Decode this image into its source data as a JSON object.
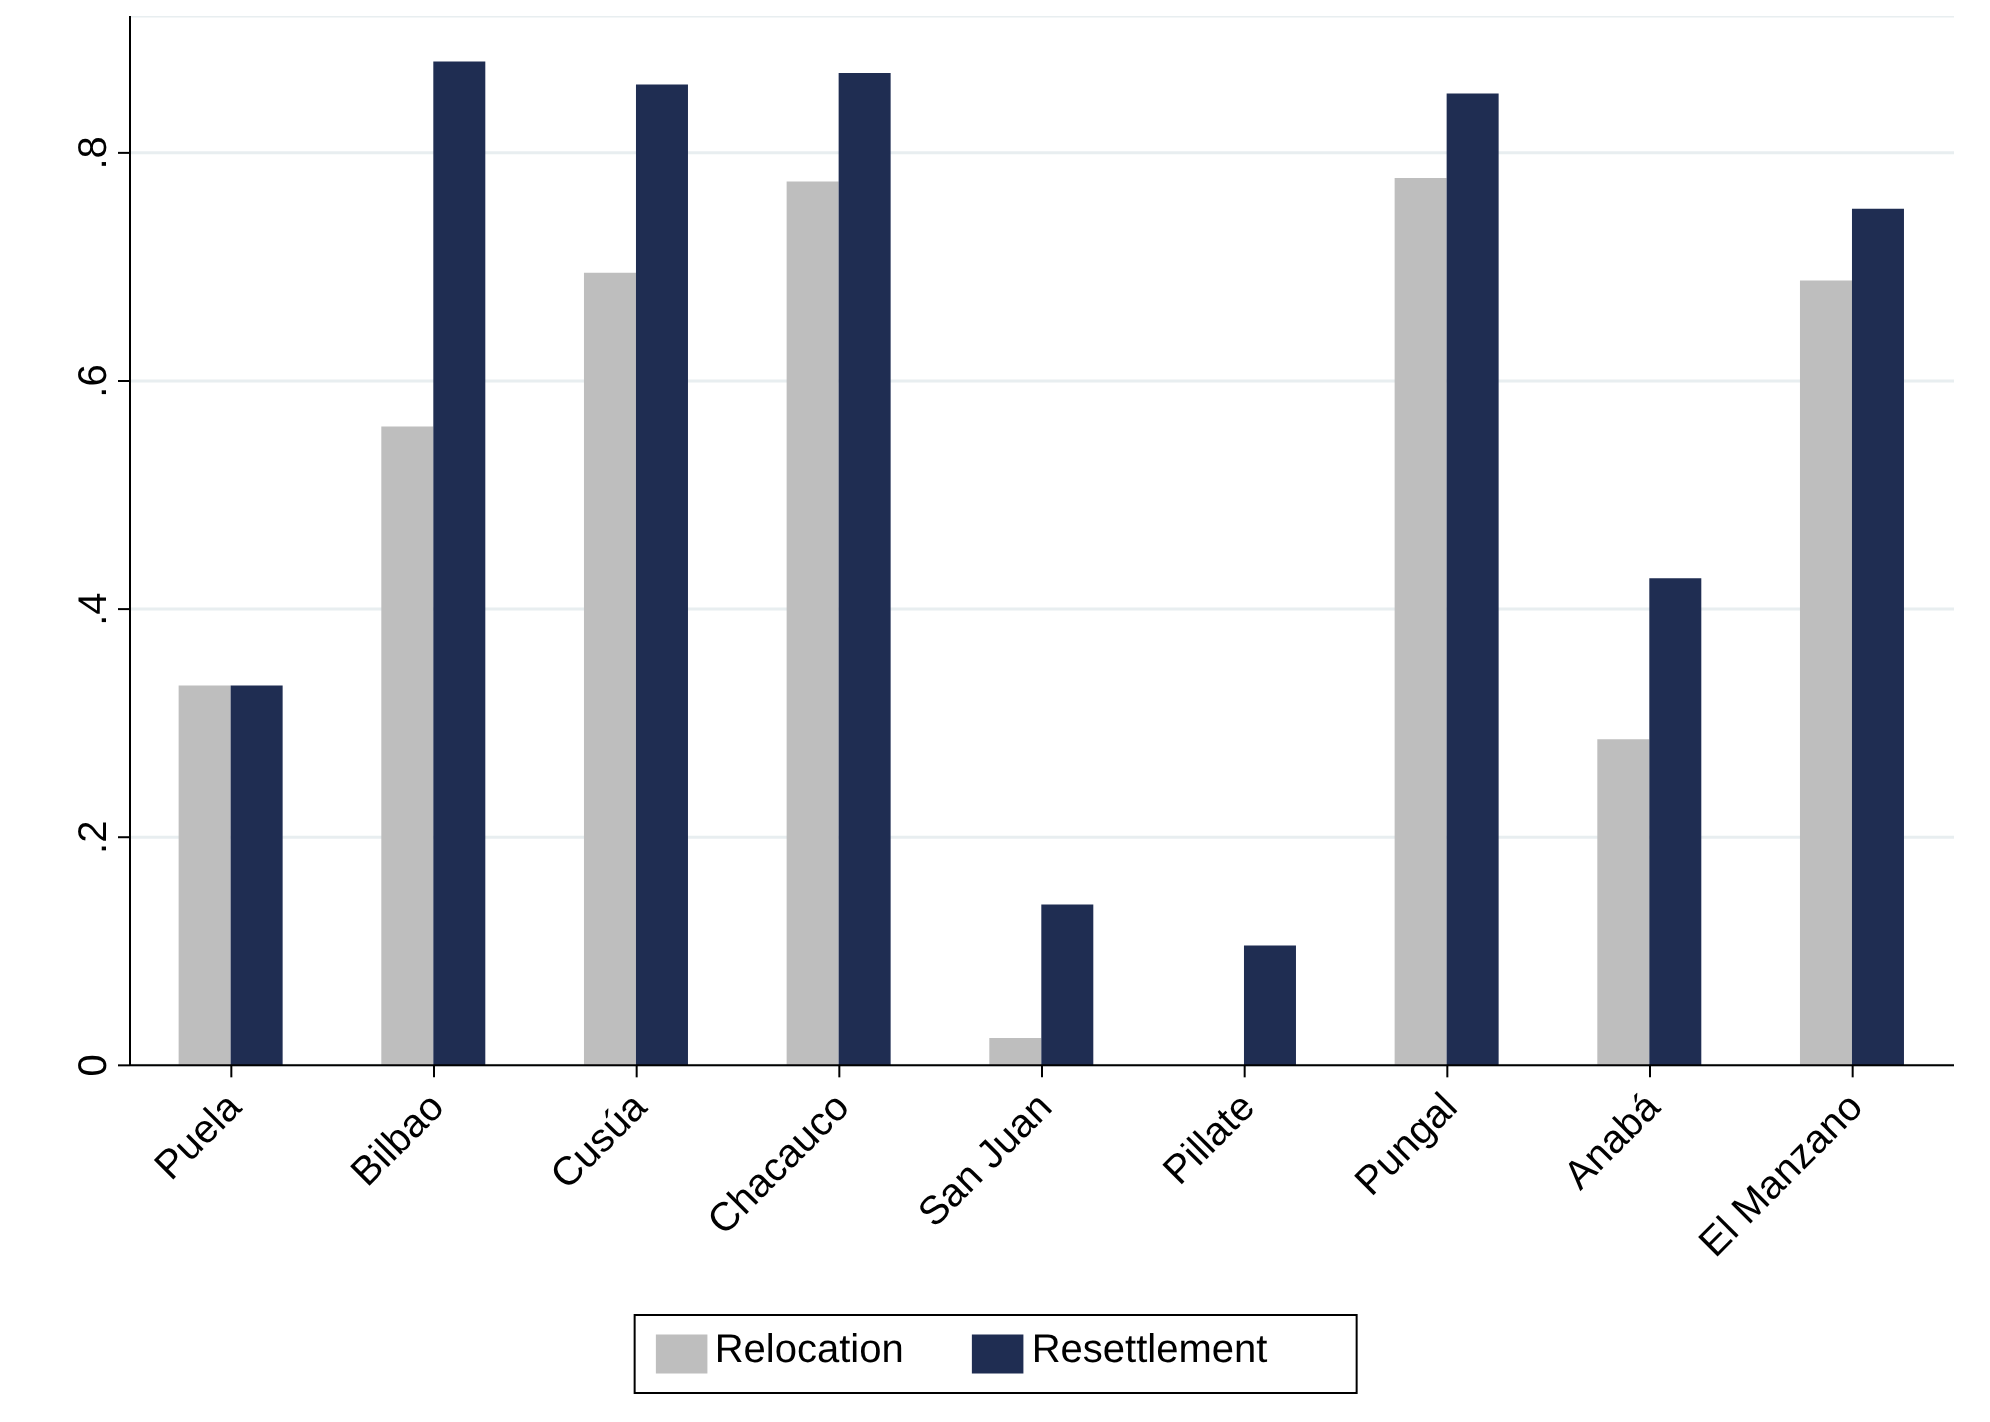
{
  "chart_data": {
    "type": "bar",
    "categories": [
      "Puela",
      "Bilbao",
      "Cusúa",
      "Chacauco",
      "San Juan",
      "Pillate",
      "Pungal",
      "Anabá",
      "El Manzano"
    ],
    "series": [
      {
        "name": "Relocation",
        "color": "#bebebe",
        "values": [
          0.333,
          0.56,
          0.695,
          0.775,
          0.024,
          0,
          0.778,
          0.286,
          0.688
        ]
      },
      {
        "name": "Resettlement",
        "color": "#1f2d52",
        "values": [
          0.333,
          0.88,
          0.86,
          0.87,
          0.141,
          0.105,
          0.852,
          0.427,
          0.751
        ]
      }
    ],
    "ylim": [
      0,
      0.92
    ],
    "yticks": [
      {
        "value": 0,
        "label": "0"
      },
      {
        "value": 0.2,
        "label": ".2"
      },
      {
        "value": 0.4,
        "label": ".4"
      },
      {
        "value": 0.6,
        "label": ".6"
      },
      {
        "value": 0.8,
        "label": ".8"
      }
    ],
    "grid": "y",
    "legend": "bottom"
  }
}
